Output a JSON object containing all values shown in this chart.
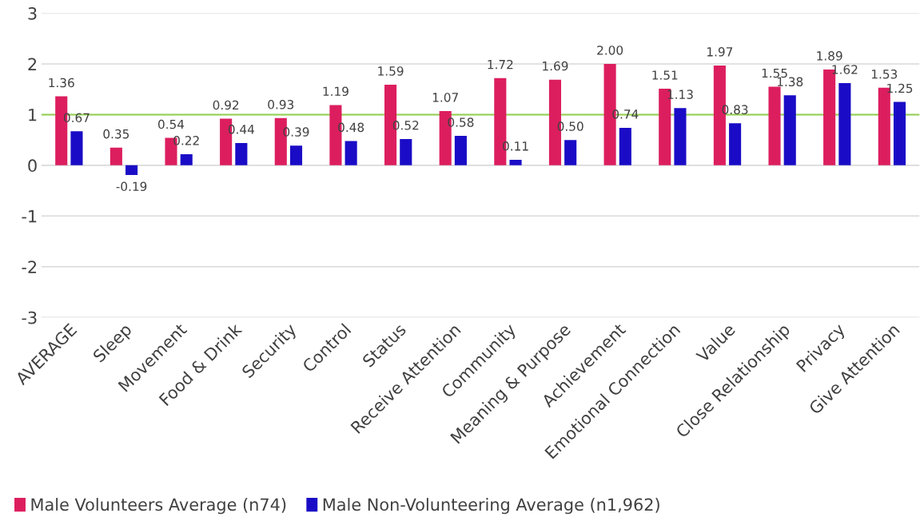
{
  "chart_data": {
    "type": "bar",
    "categories": [
      "AVERAGE",
      "Sleep",
      "Movement",
      "Food & Drink",
      "Security",
      "Control",
      "Status",
      "Receive Attention",
      "Community",
      "Meaning & Purpose",
      "Achievement",
      "Emotional Connection",
      "Value",
      "Close Relationship",
      "Privacy",
      "Give Attention"
    ],
    "series": [
      {
        "name": "Male Volunteers Average (n74)",
        "color": "#dc1e5f",
        "values": [
          1.36,
          0.35,
          0.54,
          0.92,
          0.93,
          1.19,
          1.59,
          1.07,
          1.72,
          1.69,
          2.0,
          1.51,
          1.97,
          1.55,
          1.89,
          1.53
        ],
        "value_labels": [
          "1.36",
          "0.35",
          "0.54",
          "0.92",
          "0.93",
          "1.19",
          "1.59",
          "1.07",
          "1.72",
          "1.69",
          "2.00",
          "1.51",
          "1.97",
          "1.55",
          "1.89",
          "1.53"
        ]
      },
      {
        "name": "Male Non-Volunteering Average (n1,962)",
        "color": "#1a0cc6",
        "values": [
          0.67,
          -0.19,
          0.22,
          0.44,
          0.39,
          0.48,
          0.52,
          0.58,
          0.11,
          0.5,
          0.74,
          1.13,
          0.83,
          1.38,
          1.62,
          1.25
        ],
        "value_labels": [
          "0.67",
          "-0.19",
          "0.22",
          "0.44",
          "0.39",
          "0.48",
          "0.52",
          "0.58",
          "0.11",
          "0.50",
          "0.74",
          "1.13",
          "0.83",
          "1.38",
          "1.62",
          "1.25"
        ]
      }
    ],
    "ylim": [
      -3,
      3
    ],
    "yticks": [
      -3,
      -2,
      -1,
      0,
      1,
      2,
      3
    ],
    "ref_lines": [
      {
        "axis": "y",
        "value": 1,
        "color": "#92d050"
      }
    ],
    "grid": "y",
    "legend": "bottom left"
  }
}
